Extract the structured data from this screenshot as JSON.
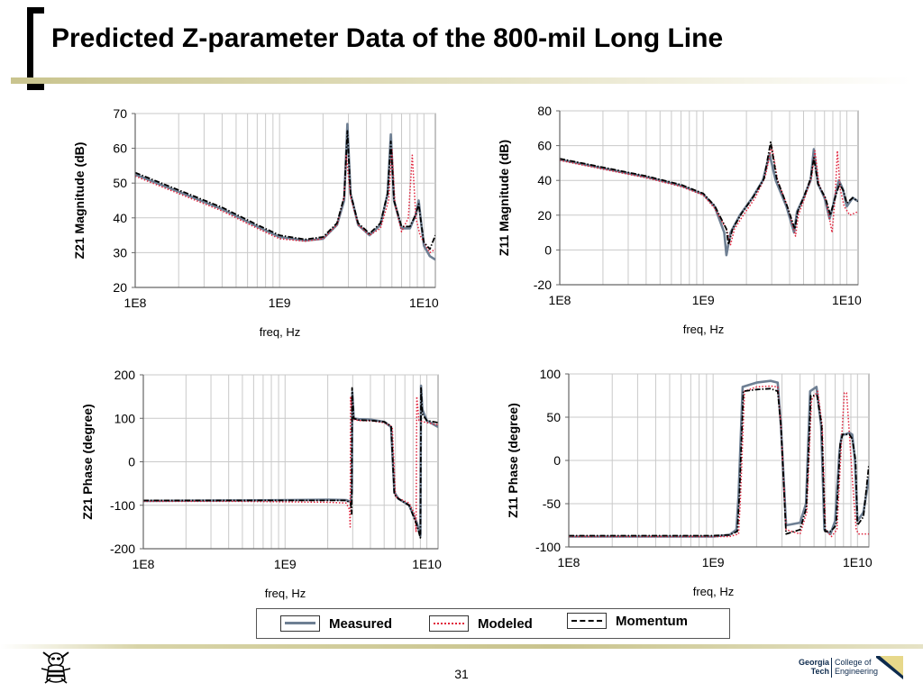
{
  "slide": {
    "title": "Predicted Z-parameter Data of the 800-mil Long Line",
    "page_number": "31"
  },
  "legend": {
    "items": [
      {
        "label": "Measured",
        "color": "#6e7f93",
        "style": "solid"
      },
      {
        "label": "Modeled",
        "color": "#e0213a",
        "style": "dotted"
      },
      {
        "label": "Momentum",
        "color": "#000000",
        "style": "dashdot"
      }
    ]
  },
  "logo": {
    "gt_line1": "Georgia",
    "gt_line2": "Tech",
    "coe_line1": "College of",
    "coe_line2": "Engineering"
  },
  "colors": {
    "measured": "#6e7f93",
    "modeled": "#e0213a",
    "momentum": "#000000",
    "grid": "#c9c9c9"
  },
  "chart_data": [
    {
      "id": "z21-mag",
      "type": "line",
      "ylabel": "Z21 Magnitude (dB)",
      "xlabel": "freq, Hz",
      "xscale": "log",
      "xlim": [
        100000000.0,
        12000000000.0
      ],
      "ylim": [
        20,
        70
      ],
      "yticks": [
        20,
        30,
        40,
        50,
        60,
        70
      ],
      "ytick_labels": [
        "20",
        "30",
        "40",
        "50",
        "60",
        "70"
      ],
      "xticks": [
        100000000.0,
        1000000000.0,
        10000000000.0
      ],
      "xtick_labels": [
        "1E8",
        "1E9",
        "1E10"
      ],
      "series": [
        {
          "name": "Measured",
          "x": [
            100000000.0,
            200000000.0,
            400000000.0,
            700000000.0,
            1000000000.0,
            1500000000.0,
            2000000000.0,
            2500000000.0,
            2800000000.0,
            2950000000.0,
            3100000000.0,
            3500000000.0,
            4200000000.0,
            5000000000.0,
            5600000000.0,
            5900000000.0,
            6200000000.0,
            7000000000.0,
            8000000000.0,
            8800000000.0,
            9200000000.0,
            9600000000.0,
            10000000000.0,
            11000000000.0,
            12000000000.0
          ],
          "y": [
            52.5,
            47.5,
            42.5,
            37.5,
            34.5,
            33.5,
            34,
            38,
            45,
            67,
            47,
            38,
            35,
            38,
            47,
            64,
            45,
            37,
            37,
            41,
            45,
            38,
            32,
            29,
            28
          ]
        },
        {
          "name": "Modeled",
          "x": [
            100000000.0,
            200000000.0,
            400000000.0,
            700000000.0,
            1000000000.0,
            1500000000.0,
            2000000000.0,
            2500000000.0,
            2800000000.0,
            2900000000.0,
            3100000000.0,
            3500000000.0,
            4200000000.0,
            5000000000.0,
            5700000000.0,
            6000000000.0,
            6300000000.0,
            7000000000.0,
            7800000000.0,
            8300000000.0,
            8800000000.0,
            9400000000.0,
            10000000000.0,
            11000000000.0,
            12000000000.0
          ],
          "y": [
            52,
            47,
            42,
            37,
            34,
            33.3,
            34,
            38,
            46,
            58,
            46,
            38,
            35,
            37,
            45,
            60,
            44,
            36,
            40,
            58,
            40,
            35,
            33,
            30,
            31
          ]
        },
        {
          "name": "Momentum",
          "x": [
            100000000.0,
            200000000.0,
            400000000.0,
            700000000.0,
            1000000000.0,
            1500000000.0,
            2000000000.0,
            2500000000.0,
            2800000000.0,
            2950000000.0,
            3100000000.0,
            3500000000.0,
            4200000000.0,
            5000000000.0,
            5600000000.0,
            5900000000.0,
            6200000000.0,
            7000000000.0,
            8000000000.0,
            8800000000.0,
            9200000000.0,
            9600000000.0,
            10000000000.0,
            11000000000.0,
            12000000000.0
          ],
          "y": [
            53,
            48,
            43,
            38,
            35,
            33.8,
            34.5,
            38.5,
            46,
            65,
            47,
            38.5,
            35.5,
            38.5,
            47,
            62,
            45,
            37.5,
            37.5,
            41,
            44,
            38,
            33,
            31,
            35
          ]
        }
      ]
    },
    {
      "id": "z11-mag",
      "type": "line",
      "ylabel": "Z11 Magnitude (dB)",
      "xlabel": "freq, Hz",
      "xscale": "log",
      "xlim": [
        100000000.0,
        12000000000.0
      ],
      "ylim": [
        -20,
        80
      ],
      "yticks": [
        -20,
        0,
        20,
        40,
        60,
        80
      ],
      "ytick_labels": [
        "-20",
        "0",
        "20",
        "40",
        "60",
        "80"
      ],
      "xticks": [
        100000000.0,
        1000000000.0,
        10000000000.0
      ],
      "xtick_labels": [
        "1E8",
        "1E9",
        "1E10"
      ],
      "series": [
        {
          "name": "Measured",
          "x": [
            100000000.0,
            200000000.0,
            400000000.0,
            700000000.0,
            1000000000.0,
            1200000000.0,
            1400000000.0,
            1450000000.0,
            1550000000.0,
            1800000000.0,
            2200000000.0,
            2600000000.0,
            2900000000.0,
            3200000000.0,
            3800000000.0,
            4300000000.0,
            4500000000.0,
            5000000000.0,
            5600000000.0,
            5900000000.0,
            6300000000.0,
            7000000000.0,
            7600000000.0,
            8000000000.0,
            8800000000.0,
            9400000000.0,
            10000000000.0,
            11000000000.0,
            12000000000.0
          ],
          "y": [
            52,
            47,
            42,
            37,
            32,
            25,
            10,
            -3,
            10,
            20,
            30,
            40,
            55,
            40,
            25,
            10,
            22,
            30,
            40,
            58,
            38,
            30,
            18,
            25,
            40,
            35,
            25,
            30,
            28
          ]
        },
        {
          "name": "Modeled",
          "x": [
            100000000.0,
            200000000.0,
            400000000.0,
            700000000.0,
            1000000000.0,
            1200000000.0,
            1450000000.0,
            1550000000.0,
            1650000000.0,
            1900000000.0,
            2300000000.0,
            2700000000.0,
            3000000000.0,
            3300000000.0,
            3900000000.0,
            4400000000.0,
            4600000000.0,
            5100000000.0,
            5700000000.0,
            6000000000.0,
            6400000000.0,
            7200000000.0,
            7900000000.0,
            8300000000.0,
            8600000000.0,
            9000000000.0,
            9600000000.0,
            10500000000.0,
            12000000000.0
          ],
          "y": [
            51.5,
            46.5,
            41.5,
            36.5,
            31.5,
            24,
            12,
            3,
            12,
            20,
            30,
            42,
            60,
            40,
            24,
            8,
            20,
            30,
            42,
            57,
            38,
            28,
            10,
            30,
            57,
            35,
            25,
            20,
            22
          ]
        },
        {
          "name": "Momentum",
          "x": [
            100000000.0,
            200000000.0,
            400000000.0,
            700000000.0,
            1000000000.0,
            1200000000.0,
            1450000000.0,
            1500000000.0,
            1600000000.0,
            1850000000.0,
            2250000000.0,
            2650000000.0,
            2950000000.0,
            3250000000.0,
            3850000000.0,
            4350000000.0,
            4550000000.0,
            5050000000.0,
            5600000000.0,
            5900000000.0,
            6300000000.0,
            7100000000.0,
            7700000000.0,
            8100000000.0,
            8900000000.0,
            9500000000.0,
            10000000000.0,
            11000000000.0,
            12000000000.0
          ],
          "y": [
            52.5,
            47.5,
            42.5,
            37.5,
            32.5,
            25.5,
            12,
            3,
            12,
            21,
            31,
            41,
            62,
            41,
            25,
            12,
            22,
            31,
            41,
            53,
            38,
            30,
            20,
            27,
            38,
            34,
            27,
            30,
            28
          ]
        }
      ]
    },
    {
      "id": "z21-phase",
      "type": "line",
      "ylabel": "Z21 Phase (degree)",
      "xlabel": "freq, Hz",
      "xscale": "log",
      "xlim": [
        100000000.0,
        12000000000.0
      ],
      "ylim": [
        -200,
        200
      ],
      "yticks": [
        -200,
        -100,
        0,
        100,
        200
      ],
      "ytick_labels": [
        "-200",
        "-100",
        "0",
        "100",
        "200"
      ],
      "xticks": [
        100000000.0,
        1000000000.0,
        10000000000.0
      ],
      "xtick_labels": [
        "1E8",
        "1E9",
        "1E10"
      ],
      "series": [
        {
          "name": "Measured",
          "x": [
            100000000.0,
            500000000.0,
            1000000000.0,
            2000000000.0,
            2700000000.0,
            2900000000.0,
            2960000000.0,
            2980000000.0,
            3050000000.0,
            3300000000.0,
            4000000000.0,
            5000000000.0,
            5600000000.0,
            5900000000.0,
            6300000000.0,
            7500000000.0,
            8500000000.0,
            9000000000.0,
            9100000000.0,
            9300000000.0,
            10000000000.0,
            12000000000.0
          ],
          "y": [
            -90,
            -89,
            -88,
            -87,
            -88,
            -92,
            -70,
            160,
            100,
            98,
            97,
            92,
            80,
            -70,
            -85,
            -100,
            -140,
            -170,
            175,
            120,
            95,
            80
          ]
        },
        {
          "name": "Modeled",
          "x": [
            100000000.0,
            500000000.0,
            1000000000.0,
            2000000000.0,
            2700000000.0,
            2850000000.0,
            2880000000.0,
            2900000000.0,
            3000000000.0,
            3300000000.0,
            4000000000.0,
            5000000000.0,
            5700000000.0,
            6000000000.0,
            6400000000.0,
            7500000000.0,
            8200000000.0,
            8400000000.0,
            8500000000.0,
            8800000000.0,
            10000000000.0,
            12000000000.0
          ],
          "y": [
            -91,
            -91,
            -92,
            -93,
            -95,
            -110,
            -150,
            150,
            98,
            95,
            94,
            90,
            80,
            -80,
            -85,
            -95,
            -120,
            -160,
            150,
            95,
            90,
            85
          ]
        },
        {
          "name": "Momentum",
          "x": [
            100000000.0,
            500000000.0,
            1000000000.0,
            2000000000.0,
            2700000000.0,
            2900000000.0,
            2950000000.0,
            2970000000.0,
            3050000000.0,
            3300000000.0,
            4000000000.0,
            5000000000.0,
            5600000000.0,
            5900000000.0,
            6300000000.0,
            7500000000.0,
            8500000000.0,
            9000000000.0,
            9100000000.0,
            9300000000.0,
            10000000000.0,
            12000000000.0
          ],
          "y": [
            -89,
            -89,
            -89,
            -89,
            -89,
            -95,
            -120,
            170,
            100,
            96,
            95,
            92,
            82,
            -75,
            -85,
            -100,
            -145,
            -175,
            170,
            110,
            95,
            90
          ]
        }
      ]
    },
    {
      "id": "z11-phase",
      "type": "line",
      "ylabel": "Z11 Phase (degree)",
      "xlabel": "freq, Hz",
      "xscale": "log",
      "xlim": [
        100000000.0,
        12000000000.0
      ],
      "ylim": [
        -100,
        100
      ],
      "yticks": [
        -100,
        -50,
        0,
        50,
        100
      ],
      "ytick_labels": [
        "-100",
        "-50",
        "0",
        "50",
        "100"
      ],
      "xticks": [
        100000000.0,
        1000000000.0,
        10000000000.0
      ],
      "xtick_labels": [
        "1E8",
        "1E9",
        "1E10"
      ],
      "series": [
        {
          "name": "Measured",
          "x": [
            100000000.0,
            500000000.0,
            1000000000.0,
            1300000000.0,
            1450000000.0,
            1500000000.0,
            1600000000.0,
            2000000000.0,
            2500000000.0,
            2800000000.0,
            2950000000.0,
            3200000000.0,
            4000000000.0,
            4400000000.0,
            4700000000.0,
            5200000000.0,
            5600000000.0,
            5900000000.0,
            6500000000.0,
            7000000000.0,
            7500000000.0,
            7800000000.0,
            8200000000.0,
            8800000000.0,
            9200000000.0,
            9600000000.0,
            10000000000.0,
            11000000000.0,
            12000000000.0
          ],
          "y": [
            -88,
            -88,
            -88,
            -86,
            -80,
            -40,
            85,
            90,
            92,
            90,
            40,
            -75,
            -72,
            -50,
            80,
            85,
            40,
            -80,
            -85,
            -70,
            10,
            30,
            30,
            32,
            30,
            0,
            -70,
            -60,
            -20
          ]
        },
        {
          "name": "Modeled",
          "x": [
            100000000.0,
            500000000.0,
            1000000000.0,
            1300000000.0,
            1500000000.0,
            1550000000.0,
            1650000000.0,
            2000000000.0,
            2500000000.0,
            2800000000.0,
            2950000000.0,
            3200000000.0,
            4000000000.0,
            4450000000.0,
            4800000000.0,
            5300000000.0,
            5700000000.0,
            6000000000.0,
            6600000000.0,
            7200000000.0,
            7800000000.0,
            8100000000.0,
            8400000000.0,
            8800000000.0,
            9200000000.0,
            9800000000.0,
            10200000000.0,
            11000000000.0,
            12000000000.0
          ],
          "y": [
            -88,
            -88,
            -88,
            -88,
            -85,
            -40,
            80,
            85,
            86,
            85,
            40,
            -80,
            -85,
            -60,
            70,
            80,
            40,
            -80,
            -88,
            -80,
            30,
            78,
            78,
            30,
            -20,
            -80,
            -85,
            -85,
            -85
          ]
        },
        {
          "name": "Momentum",
          "x": [
            100000000.0,
            500000000.0,
            1000000000.0,
            1300000000.0,
            1470000000.0,
            1520000000.0,
            1620000000.0,
            2000000000.0,
            2500000000.0,
            2800000000.0,
            2950000000.0,
            3200000000.0,
            4000000000.0,
            4420000000.0,
            4750000000.0,
            5250000000.0,
            5650000000.0,
            5950000000.0,
            6550000000.0,
            7100000000.0,
            7600000000.0,
            7900000000.0,
            8300000000.0,
            8800000000.0,
            9200000000.0,
            9700000000.0,
            10000000000.0,
            11000000000.0,
            12000000000.0
          ],
          "y": [
            -87,
            -87,
            -87,
            -86,
            -82,
            -40,
            80,
            82,
            83,
            80,
            40,
            -85,
            -80,
            -55,
            75,
            75,
            40,
            -82,
            -82,
            -75,
            20,
            30,
            30,
            30,
            25,
            0,
            -75,
            -65,
            -5
          ]
        }
      ]
    }
  ]
}
